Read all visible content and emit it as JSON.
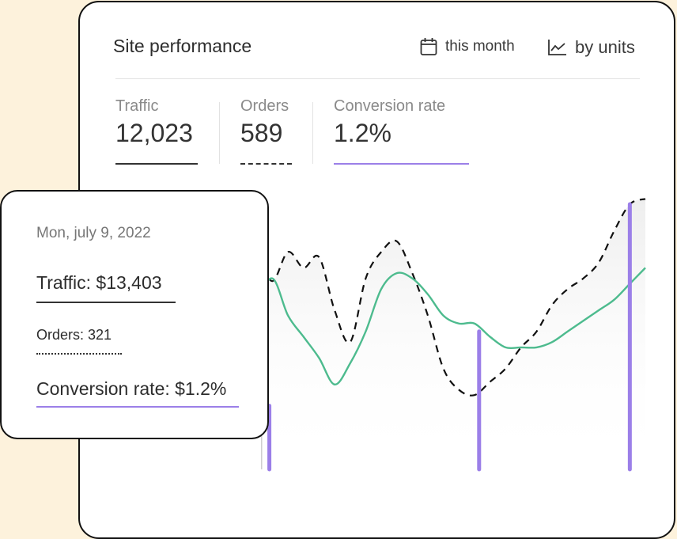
{
  "header": {
    "title": "Site performance",
    "period_label": "this month",
    "view_label": "by units"
  },
  "metrics": {
    "traffic": {
      "label": "Traffic",
      "value": "12,023"
    },
    "orders": {
      "label": "Orders",
      "value": "589"
    },
    "conversion": {
      "label": "Conversion rate",
      "value": "1.2%"
    }
  },
  "tooltip": {
    "date": "Mon, july 9, 2022",
    "traffic": "Traffic: $13,403",
    "orders": "Orders: 321",
    "conversion": "Conversion rate: $1.2%"
  },
  "colors": {
    "traffic": "#4dbb8e",
    "orders": "#111111",
    "conversion": "#9b7fe8",
    "background": "#fdf2dc"
  },
  "icons": {
    "period": "calendar-icon",
    "view": "line-chart-icon"
  },
  "chart_data": {
    "type": "line",
    "title": "",
    "xlabel": "",
    "ylabel": "",
    "grid": false,
    "legend": "none",
    "x": [
      0,
      1,
      2,
      3,
      4,
      5,
      6,
      7,
      8,
      9,
      10,
      11,
      12,
      13,
      14,
      15,
      16,
      17,
      18,
      19,
      20,
      21,
      22,
      23,
      24,
      25,
      26,
      27,
      28,
      29,
      30,
      31
    ],
    "ylim": [
      0,
      100
    ],
    "series": [
      {
        "key": "orders",
        "style": "dashed",
        "values": [
          60,
          69,
          64,
          78,
          76,
          73,
          80,
          71,
          82,
          76,
          80,
          60,
          48,
          72,
          82,
          86,
          74,
          58,
          38,
          30,
          28,
          33,
          38,
          46,
          52,
          62,
          68,
          72,
          78,
          90,
          100,
          102
        ]
      },
      {
        "key": "traffic",
        "style": "solid",
        "values": [
          25,
          27,
          29,
          28,
          30,
          40,
          62,
          72,
          58,
          50,
          42,
          32,
          40,
          52,
          68,
          74,
          72,
          66,
          58,
          55,
          55,
          50,
          46,
          46,
          46,
          48,
          52,
          56,
          60,
          64,
          70,
          76
        ]
      },
      {
        "key": "conversion",
        "style": "bars",
        "bars": [
          {
            "x": 6.8,
            "value": 24
          },
          {
            "x": 20.3,
            "value": 52
          },
          {
            "x": 30,
            "value": 100
          }
        ]
      }
    ],
    "highlight_x": 6.3
  }
}
